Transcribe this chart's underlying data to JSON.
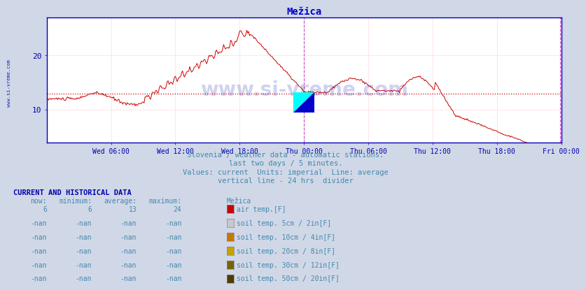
{
  "title": "Mežica",
  "title_color": "#0000cc",
  "bg_color": "#d0d8e8",
  "plot_bg_color": "#ffffff",
  "line_color": "#cc0000",
  "avg_line_color": "#cc0000",
  "avg_value": 13,
  "divider_color": "#cc44cc",
  "grid_color": "#ffb0b0",
  "axis_color": "#0000bb",
  "tick_color": "#0000aa",
  "text_color": "#4488aa",
  "label_color": "#0000aa",
  "ylim": [
    4,
    27
  ],
  "yticks": [
    10,
    20
  ],
  "xmin": 0,
  "xmax": 576,
  "divider_x": 288,
  "xtick_labels": [
    "Wed 06:00",
    "Wed 12:00",
    "Wed 18:00",
    "Thu 00:00",
    "Thu 06:00",
    "Thu 12:00",
    "Thu 18:00",
    "Fri 00:00"
  ],
  "xtick_positions": [
    72,
    144,
    216,
    288,
    360,
    432,
    504,
    576
  ],
  "watermark_text": "www.si-vreme.com",
  "watermark_color": "#0000aa",
  "watermark_alpha": 0.18,
  "subtitle1": "Slovenia / weather data - automatic stations.",
  "subtitle2": "last two days / 5 minutes.",
  "subtitle3": "Values: current  Units: imperial  Line: average",
  "subtitle4": "vertical line - 24 hrs  divider",
  "table_title": "CURRENT AND HISTORICAL DATA",
  "table_headers": [
    "now:",
    "minimum:",
    "average:",
    "maximum:",
    "Mežica"
  ],
  "table_rows": [
    {
      "now": "6",
      "min": "6",
      "avg": "13",
      "max": "24",
      "label": "air temp.[F]",
      "color": "#cc0000"
    },
    {
      "now": "-nan",
      "min": "-nan",
      "avg": "-nan",
      "max": "-nan",
      "label": "soil temp. 5cm / 2in[F]",
      "color": "#c8c8c8"
    },
    {
      "now": "-nan",
      "min": "-nan",
      "avg": "-nan",
      "max": "-nan",
      "label": "soil temp. 10cm / 4in[F]",
      "color": "#c87800"
    },
    {
      "now": "-nan",
      "min": "-nan",
      "avg": "-nan",
      "max": "-nan",
      "label": "soil temp. 20cm / 8in[F]",
      "color": "#c8a000"
    },
    {
      "now": "-nan",
      "min": "-nan",
      "avg": "-nan",
      "max": "-nan",
      "label": "soil temp. 30cm / 12in[F]",
      "color": "#786400"
    },
    {
      "now": "-nan",
      "min": "-nan",
      "avg": "-nan",
      "max": "-nan",
      "label": "soil temp. 50cm / 20in[F]",
      "color": "#503c00"
    }
  ],
  "logo_yellow": "#ffff00",
  "logo_cyan": "#00ffff",
  "logo_blue": "#0000cc"
}
